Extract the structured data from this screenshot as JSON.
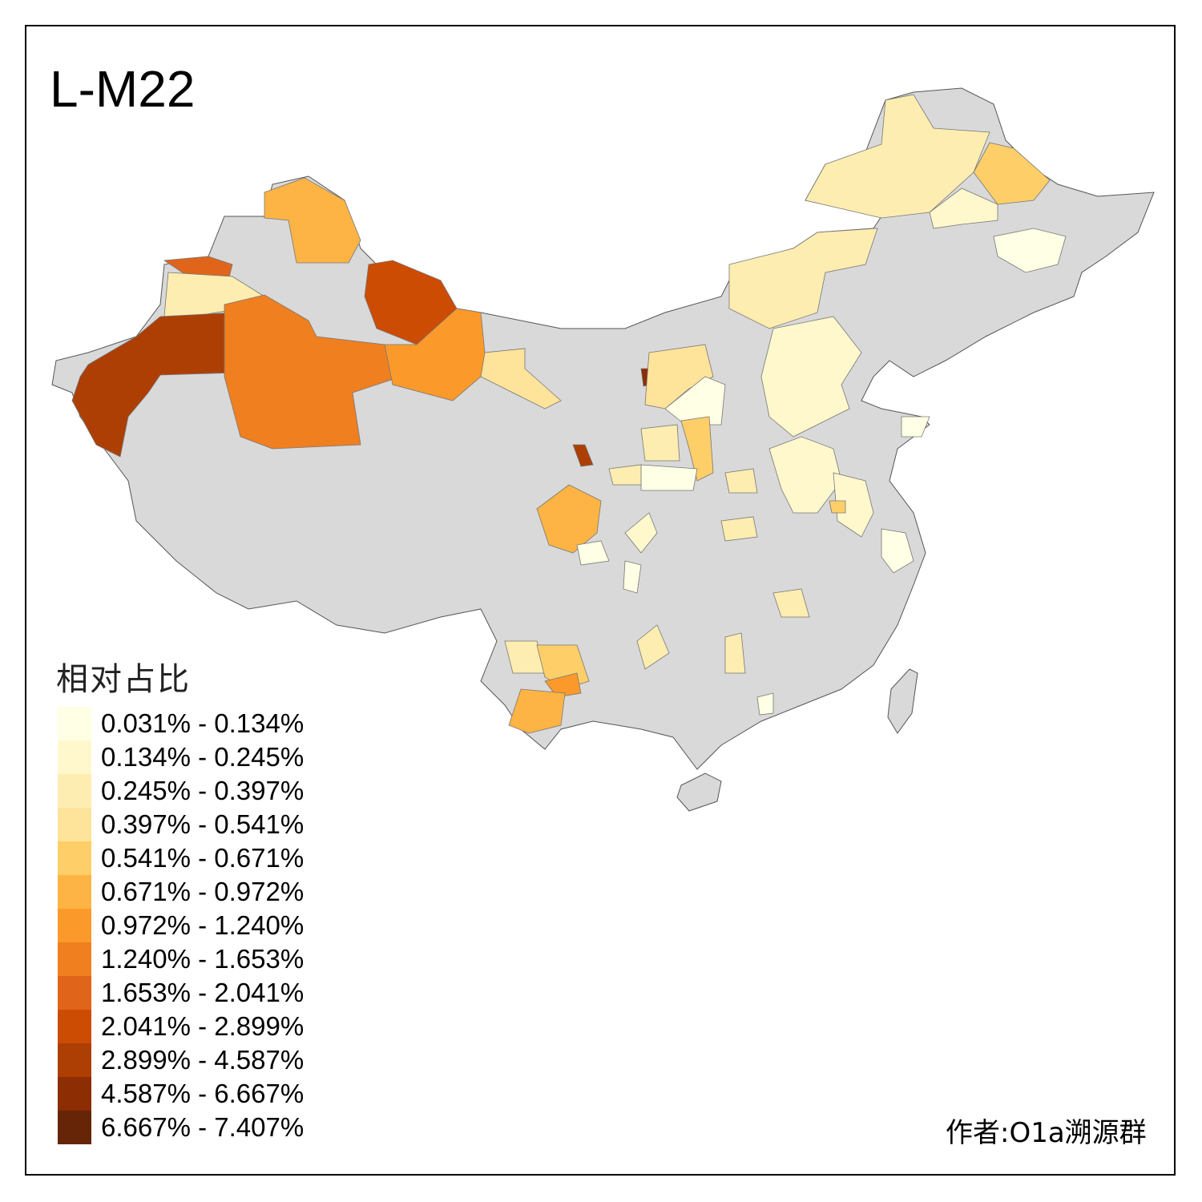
{
  "title": "L-M22",
  "legend": {
    "title": "相对占比",
    "bins": [
      {
        "label": "0.031% - 0.134%",
        "color": "#FFFFE5"
      },
      {
        "label": "0.134% - 0.245%",
        "color": "#FFF8CC"
      },
      {
        "label": "0.245% - 0.397%",
        "color": "#FEEDB0"
      },
      {
        "label": "0.397% - 0.541%",
        "color": "#FEE39A"
      },
      {
        "label": "0.541% - 0.671%",
        "color": "#FECF68"
      },
      {
        "label": "0.671% - 0.972%",
        "color": "#FDB445"
      },
      {
        "label": "0.972% - 1.240%",
        "color": "#FB9A2A"
      },
      {
        "label": "1.240% - 1.653%",
        "color": "#F07F1F"
      },
      {
        "label": "1.653% - 2.041%",
        "color": "#E0651A"
      },
      {
        "label": "2.041% - 2.899%",
        "color": "#CC4C03"
      },
      {
        "label": "2.899% - 4.587%",
        "color": "#AD3F04"
      },
      {
        "label": "4.587% - 6.667%",
        "color": "#8C2D04"
      },
      {
        "label": "6.667% - 7.407%",
        "color": "#662506"
      }
    ]
  },
  "no_data_color": "#D9D9D9",
  "author": "作者:O1a溯源群"
}
